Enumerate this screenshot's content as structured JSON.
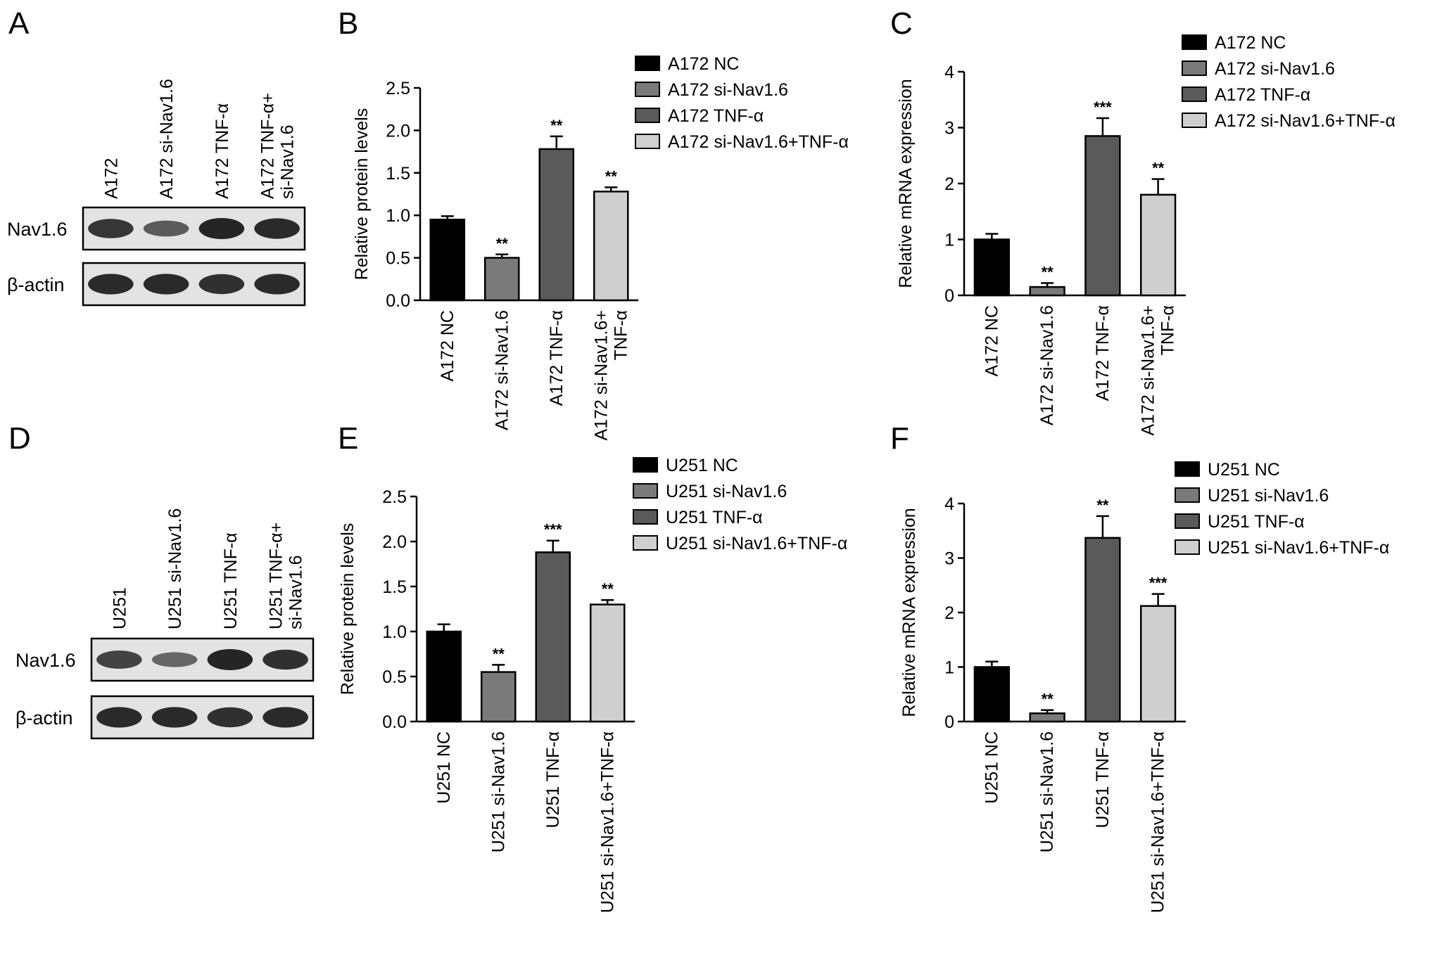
{
  "colors": {
    "bar_fills": [
      "#000000",
      "#7a7a7a",
      "#5a5a5a",
      "#cfcfcf"
    ],
    "blot_background": "#e3e3e3",
    "band": "#1a1a1a"
  },
  "panels": {
    "A": {
      "letter": "A",
      "lanes": [
        "A172",
        "A172 si-Nav1.6",
        "A172 TNF-α",
        "A172 TNF-α+\nsi-Nav1.6"
      ],
      "rows": [
        {
          "label": "Nav1.6",
          "intensities": [
            0.85,
            0.55,
            1.0,
            0.95
          ]
        },
        {
          "label": "β-actin",
          "intensities": [
            0.95,
            0.95,
            0.9,
            0.95
          ]
        }
      ]
    },
    "D": {
      "letter": "D",
      "lanes": [
        "U251",
        "U251 si-Nav1.6",
        "U251 TNF-α",
        "U251 TNF-α+\nsi-Nav1.6"
      ],
      "rows": [
        {
          "label": "Nav1.6",
          "intensities": [
            0.75,
            0.45,
            1.0,
            0.9
          ]
        },
        {
          "label": "β-actin",
          "intensities": [
            0.95,
            0.95,
            0.9,
            0.95
          ]
        }
      ]
    }
  },
  "chart_data": [
    {
      "panel": "B",
      "type": "bar",
      "ylabel": "Relative protein levels",
      "ylim": [
        0,
        2.5
      ],
      "yticks": [
        "0.0",
        "0.5",
        "1.0",
        "1.5",
        "2.0",
        "2.5"
      ],
      "categories": [
        "A172 NC",
        "A172 si-Nav1.6",
        "A172 TNF-α",
        "A172 si-Nav1.6+\nTNF-α"
      ],
      "values": [
        0.95,
        0.5,
        1.78,
        1.28
      ],
      "errors": [
        0.04,
        0.04,
        0.15,
        0.05
      ],
      "significance": [
        "",
        "**",
        "**",
        "**"
      ],
      "legend": [
        "A172 NC",
        "A172 si-Nav1.6",
        "A172 TNF-α",
        "A172 si-Nav1.6+TNF-α"
      ]
    },
    {
      "panel": "C",
      "type": "bar",
      "ylabel": "Relative mRNA expression",
      "ylim": [
        0,
        4
      ],
      "yticks": [
        "0",
        "1",
        "2",
        "3",
        "4"
      ],
      "categories": [
        "A172 NC",
        "A172 si-Nav1.6",
        "A172 TNF-α",
        "A172 si-Nav1.6+\nTNF-α"
      ],
      "values": [
        1.0,
        0.15,
        2.85,
        1.8
      ],
      "errors": [
        0.1,
        0.07,
        0.32,
        0.28
      ],
      "significance": [
        "",
        "**",
        "***",
        "**"
      ],
      "legend": [
        "A172 NC",
        "A172 si-Nav1.6",
        "A172 TNF-α",
        "A172 si-Nav1.6+TNF-α"
      ]
    },
    {
      "panel": "E",
      "type": "bar",
      "ylabel": "Relative protein levels",
      "ylim": [
        0,
        2.5
      ],
      "yticks": [
        "0.0",
        "0.5",
        "1.0",
        "1.5",
        "2.0",
        "2.5"
      ],
      "categories": [
        "U251 NC",
        "U251 si-Nav1.6",
        "U251 TNF-α",
        "U251 si-Nav1.6+TNF-α"
      ],
      "values": [
        1.0,
        0.55,
        1.88,
        1.3
      ],
      "errors": [
        0.08,
        0.08,
        0.13,
        0.05
      ],
      "significance": [
        "",
        "**",
        "***",
        "**"
      ],
      "legend": [
        "U251 NC",
        "U251 si-Nav1.6",
        "U251 TNF-α",
        "U251 si-Nav1.6+TNF-α"
      ]
    },
    {
      "panel": "F",
      "type": "bar",
      "ylabel": "Relative mRNA expression",
      "ylim": [
        0,
        4
      ],
      "yticks": [
        "0",
        "1",
        "2",
        "3",
        "4"
      ],
      "categories": [
        "U251 NC",
        "U251 si-Nav1.6",
        "U251 TNF-α",
        "U251 si-Nav1.6+TNF-α"
      ],
      "values": [
        1.0,
        0.15,
        3.37,
        2.12
      ],
      "errors": [
        0.1,
        0.06,
        0.4,
        0.22
      ],
      "significance": [
        "",
        "**",
        "**",
        "***"
      ],
      "legend": [
        "U251 NC",
        "U251 si-Nav1.6",
        "U251 TNF-α",
        "U251 si-Nav1.6+TNF-α"
      ]
    }
  ]
}
